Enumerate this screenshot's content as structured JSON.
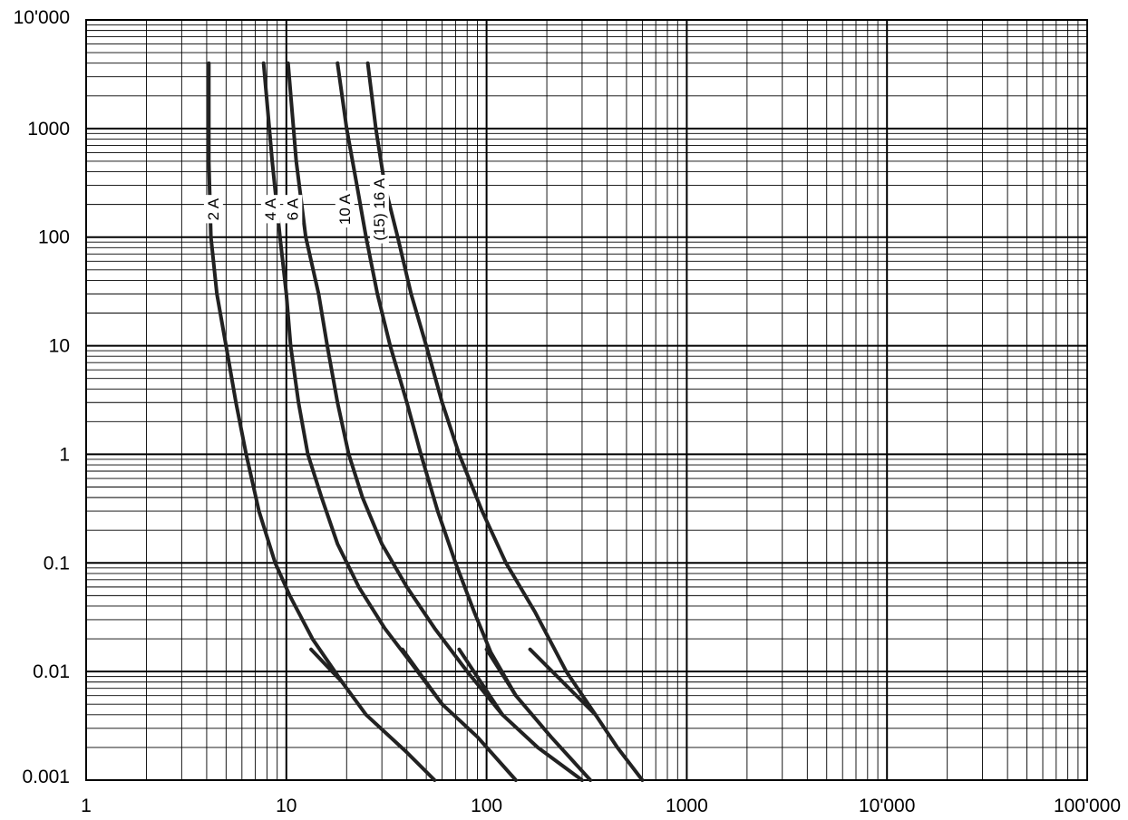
{
  "chart_data": {
    "type": "line",
    "title": "",
    "xlabel": "",
    "ylabel": "",
    "x_scale": "log",
    "y_scale": "log",
    "xlim": [
      1,
      100000
    ],
    "ylim": [
      0.001,
      10000
    ],
    "grid": true,
    "legend": "none",
    "line_color": "#222222",
    "x_ticks": [
      {
        "value": 1,
        "label": "1"
      },
      {
        "value": 10,
        "label": "10"
      },
      {
        "value": 100,
        "label": "100"
      },
      {
        "value": 1000,
        "label": "1000"
      },
      {
        "value": 10000,
        "label": "10'000"
      },
      {
        "value": 100000,
        "label": "100'000"
      }
    ],
    "y_ticks": [
      {
        "value": 0.001,
        "label": "0.001"
      },
      {
        "value": 0.01,
        "label": "0.01"
      },
      {
        "value": 0.1,
        "label": "0.1"
      },
      {
        "value": 1,
        "label": "1"
      },
      {
        "value": 10,
        "label": "10"
      },
      {
        "value": 100,
        "label": "100"
      },
      {
        "value": 1000,
        "label": "1000"
      },
      {
        "value": 10000,
        "label": "10'000"
      }
    ],
    "series": [
      {
        "name": "2 A",
        "label_at": [
          4.3,
          180
        ],
        "points": [
          [
            4.1,
            4000
          ],
          [
            4.1,
            500
          ],
          [
            4.2,
            100
          ],
          [
            4.5,
            30
          ],
          [
            5.0,
            10
          ],
          [
            5.6,
            3
          ],
          [
            6.3,
            1
          ],
          [
            7.3,
            0.3
          ],
          [
            8.8,
            0.1
          ],
          [
            10.4,
            0.05
          ],
          [
            13.5,
            0.02
          ],
          [
            19.0,
            0.008
          ],
          [
            25.0,
            0.004
          ],
          [
            40.0,
            0.0018
          ],
          [
            55.0,
            0.001
          ]
        ],
        "tail": [
          [
            13.3,
            0.016
          ],
          [
            19.0,
            0.008
          ]
        ]
      },
      {
        "name": "4 A",
        "label_at": [
          8.3,
          180
        ],
        "points": [
          [
            7.7,
            4000
          ],
          [
            8.5,
            500
          ],
          [
            9.3,
            100
          ],
          [
            10.0,
            30
          ],
          [
            10.5,
            10
          ],
          [
            11.5,
            3
          ],
          [
            12.8,
            1
          ],
          [
            15.0,
            0.4
          ],
          [
            18.0,
            0.15
          ],
          [
            23.0,
            0.06
          ],
          [
            31.0,
            0.025
          ],
          [
            42.0,
            0.012
          ],
          [
            60.0,
            0.005
          ],
          [
            90.0,
            0.0025
          ],
          [
            140.0,
            0.001
          ]
        ],
        "tail": [
          [
            38.0,
            0.016
          ],
          [
            60.0,
            0.005
          ]
        ]
      },
      {
        "name": "6 A",
        "label_at": [
          10.7,
          180
        ],
        "points": [
          [
            10.2,
            4000
          ],
          [
            11.2,
            500
          ],
          [
            12.5,
            100
          ],
          [
            14.5,
            30
          ],
          [
            16.0,
            10
          ],
          [
            18.0,
            3
          ],
          [
            20.5,
            1
          ],
          [
            24.0,
            0.4
          ],
          [
            30.0,
            0.15
          ],
          [
            40.0,
            0.06
          ],
          [
            55.0,
            0.025
          ],
          [
            80.0,
            0.01
          ],
          [
            120.0,
            0.004
          ],
          [
            180.0,
            0.002
          ],
          [
            300.0,
            0.001
          ]
        ],
        "tail": [
          [
            73.0,
            0.016
          ],
          [
            120.0,
            0.004
          ]
        ]
      },
      {
        "name": "10 A",
        "label_at": [
          19.5,
          180
        ],
        "points": [
          [
            18.0,
            4000
          ],
          [
            20.0,
            1000
          ],
          [
            22.5,
            300
          ],
          [
            25.0,
            100
          ],
          [
            28.5,
            30
          ],
          [
            33.0,
            10
          ],
          [
            40.0,
            3
          ],
          [
            47.0,
            1
          ],
          [
            57.0,
            0.3
          ],
          [
            70.0,
            0.1
          ],
          [
            87.0,
            0.035
          ],
          [
            105.0,
            0.015
          ],
          [
            140.0,
            0.006
          ],
          [
            210.0,
            0.0025
          ],
          [
            330.0,
            0.001
          ]
        ],
        "tail": [
          [
            100.0,
            0.016
          ],
          [
            140.0,
            0.006
          ]
        ]
      },
      {
        "name": "(15) 16 A",
        "label_at": [
          29.0,
          180
        ],
        "points": [
          [
            25.5,
            4000
          ],
          [
            28.0,
            1000
          ],
          [
            31.0,
            300
          ],
          [
            36.0,
            100
          ],
          [
            42.0,
            30
          ],
          [
            50.0,
            10
          ],
          [
            60.0,
            3
          ],
          [
            73.0,
            1
          ],
          [
            95.0,
            0.3
          ],
          [
            125.0,
            0.1
          ],
          [
            175.0,
            0.035
          ],
          [
            250.0,
            0.01
          ],
          [
            350.0,
            0.004
          ],
          [
            450.0,
            0.002
          ],
          [
            600.0,
            0.001
          ]
        ],
        "tail": [
          [
            165.0,
            0.016
          ],
          [
            350.0,
            0.004
          ]
        ]
      }
    ]
  }
}
